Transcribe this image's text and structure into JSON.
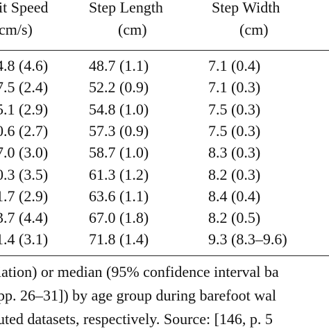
{
  "table": {
    "header": [
      [
        "it Speed",
        "Step Length",
        "Step Width"
      ],
      [
        "cm/s)",
        "(cm)",
        "(cm)"
      ]
    ],
    "rows": [
      [
        "4.8 (4.6)",
        "48.7 (1.1)",
        "7.1 (0.4)"
      ],
      [
        "7.5 (2.4)",
        "52.2 (0.9)",
        "7.1 (0.3)"
      ],
      [
        "5.1 (2.9)",
        "54.8 (1.0)",
        "7.5 (0.3)"
      ],
      [
        "0.6 (2.7)",
        "57.3 (0.9)",
        "7.5 (0.3)"
      ],
      [
        "7.0 (3.0)",
        "58.7 (1.0)",
        "8.3 (0.3)"
      ],
      [
        "0.3 (3.5)",
        "61.3 (1.2)",
        "8.2 (0.3)"
      ],
      [
        "1.7 (2.9)",
        "63.6 (1.1)",
        "8.4 (0.4)"
      ],
      [
        "3.7 (4.4)",
        "67.0 (1.8)",
        "8.2 (0.5)"
      ],
      [
        "1.4 (3.1)",
        "71.8 (1.4)",
        "9.3 (8.3–9.6)"
      ]
    ]
  },
  "caption": [
    "iation) or median (95% confidence interval ba",
    "pp. 26–31]) by age group during barefoot wal",
    "uted datasets, respectively. Source: [146, p. 5"
  ]
}
